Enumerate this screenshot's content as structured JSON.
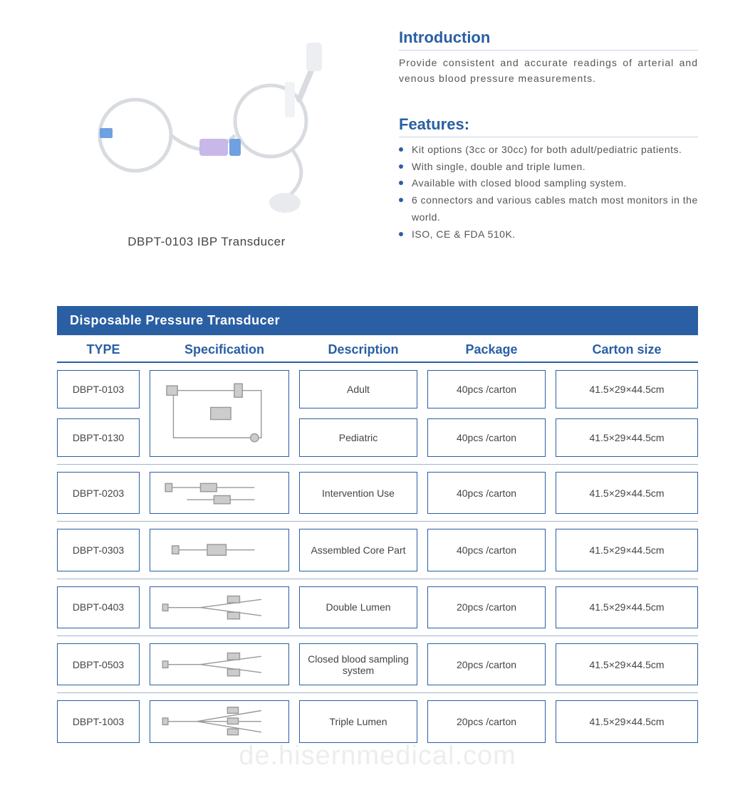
{
  "product": {
    "caption": "DBPT-0103 IBP Transducer"
  },
  "introduction": {
    "title": "Introduction",
    "text": "Provide consistent and accurate readings of arterial and venous blood pressure measurements."
  },
  "features": {
    "title": "Features:",
    "items": [
      "Kit options (3cc or 30cc) for both adult/pediatric patients.",
      "With single, double and triple lumen.",
      "Available with closed blood sampling system.",
      "6 connectors and various cables match most monitors in the world.",
      "ISO, CE & FDA 510K."
    ]
  },
  "table": {
    "title": "Disposable Pressure Transducer",
    "columns": {
      "type": "TYPE",
      "spec": "Specification",
      "desc": "Description",
      "pkg": "Package",
      "size": "Carton  size"
    },
    "rows": [
      {
        "types": [
          "DBPT-0103",
          "DBPT-0130"
        ],
        "descs": [
          "Adult",
          "Pediatric"
        ],
        "pkgs": [
          "40pcs /carton",
          "40pcs /carton"
        ],
        "sizes": [
          "41.5×29×44.5cm",
          "41.5×29×44.5cm"
        ],
        "spec_kind": "loop"
      },
      {
        "types": [
          "DBPT-0203"
        ],
        "descs": [
          "Intervention Use"
        ],
        "pkgs": [
          "40pcs /carton"
        ],
        "sizes": [
          "41.5×29×44.5cm"
        ],
        "spec_kind": "short2"
      },
      {
        "types": [
          "DBPT-0303"
        ],
        "descs": [
          "Assembled Core Part"
        ],
        "pkgs": [
          "40pcs /carton"
        ],
        "sizes": [
          "41.5×29×44.5cm"
        ],
        "spec_kind": "short1"
      },
      {
        "types": [
          "DBPT-0403"
        ],
        "descs": [
          "Double Lumen"
        ],
        "pkgs": [
          "20pcs /carton"
        ],
        "sizes": [
          "41.5×29×44.5cm"
        ],
        "spec_kind": "branch2"
      },
      {
        "types": [
          "DBPT-0503"
        ],
        "descs": [
          "Closed blood sampling system"
        ],
        "pkgs": [
          "20pcs /carton"
        ],
        "sizes": [
          "41.5×29×44.5cm"
        ],
        "spec_kind": "branch2b"
      },
      {
        "types": [
          "DBPT-1003"
        ],
        "descs": [
          "Triple Lumen"
        ],
        "pkgs": [
          "20pcs /carton"
        ],
        "sizes": [
          "41.5×29×44.5cm"
        ],
        "spec_kind": "branch3"
      }
    ]
  },
  "watermark": "de.hisernmedical.com",
  "colors": {
    "brand": "#2a5fa3",
    "text": "#555555",
    "border_light": "#9fb5d1",
    "divider": "#c8d4e4"
  }
}
